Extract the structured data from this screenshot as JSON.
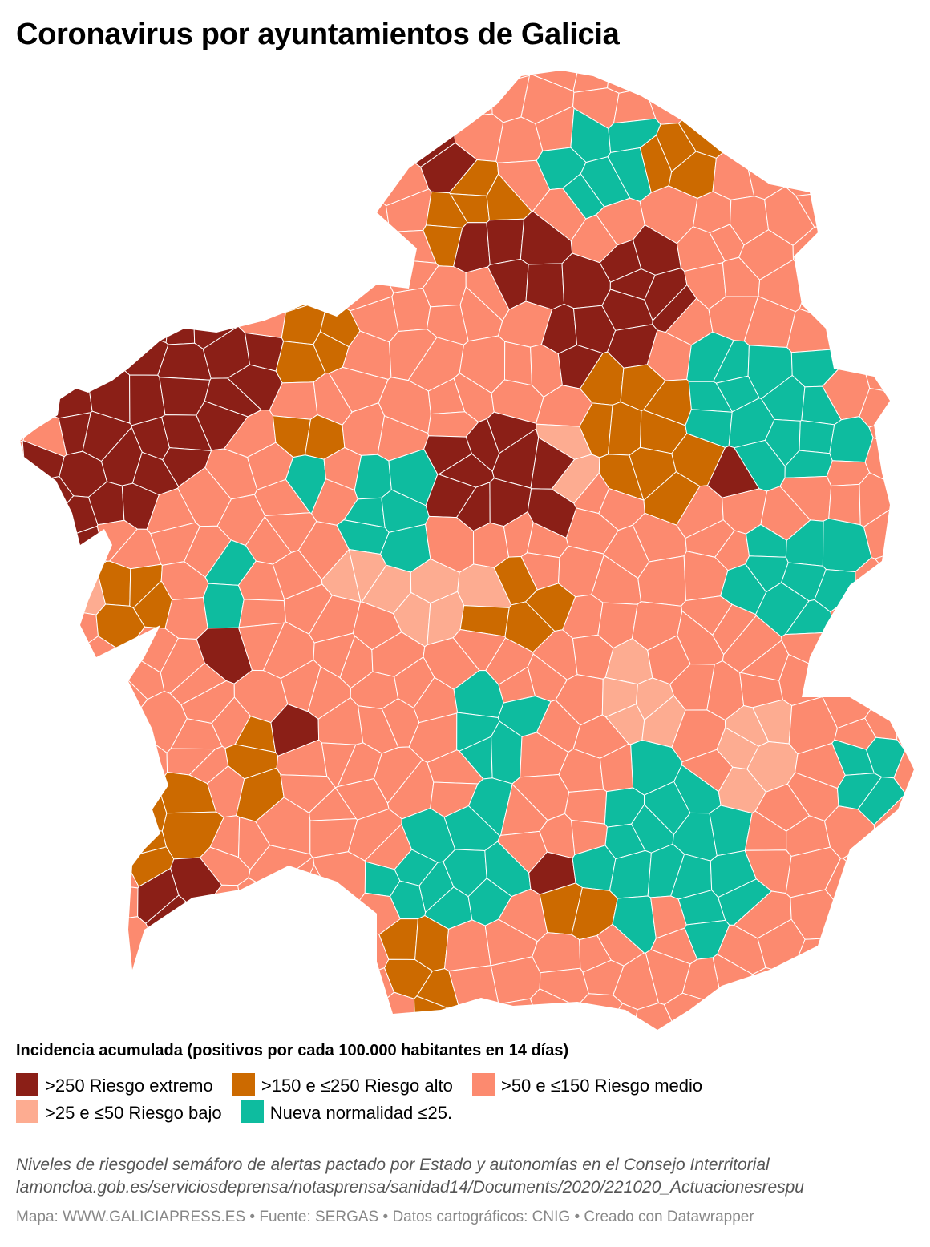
{
  "header": {
    "title": "Coronavirus por ayuntamientos de Galicia"
  },
  "colors": {
    "extremo": "#8b1f17",
    "alto": "#cc6a00",
    "medio": "#fc8a6f",
    "bajo": "#fdac91",
    "normal": "#0ebc9f",
    "border": "#ffffff"
  },
  "legend": {
    "title": "Incidencia acumulada (positivos por cada 100.000 habitantes en 14 días)",
    "items": [
      {
        "label": ">250 Riesgo extremo",
        "color": "#8b1f17"
      },
      {
        "label": ">150 e ≤250 Riesgo alto",
        "color": "#cc6a00"
      },
      {
        "label": ">50 e ≤150 Riesgo medio",
        "color": "#fc8a6f"
      },
      {
        "label": ">25 e ≤50 Riesgo bajo",
        "color": "#fdac91"
      },
      {
        "label": "Nueva normalidad ≤25.",
        "color": "#0ebc9f"
      }
    ]
  },
  "notes": {
    "line1": "Niveles de riesgodel semáforo de alertas pactado por Estado y autonomías en el Consejo Interritorial",
    "line2": "lamoncloa.gob.es/serviciosdeprensa/notasprensa/sanidad14/Documents/2020/221020_Actuacionesrespu"
  },
  "footer": {
    "credit": "Mapa: WWW.GALICIAPRESS.ES • Fuente: SERGAS • Datos cartográficos: CNIG • Creado con Datawrapper"
  }
}
